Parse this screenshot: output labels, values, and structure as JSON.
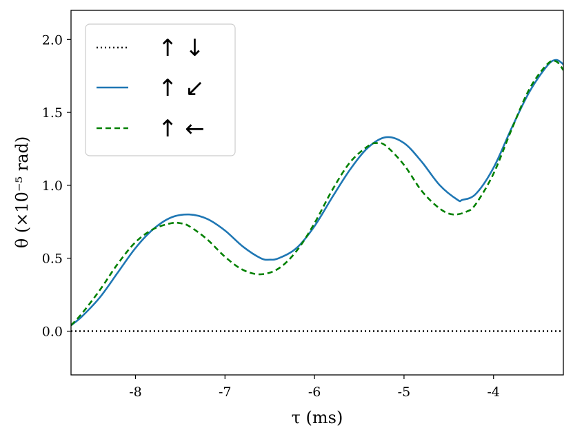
{
  "chart_data": {
    "type": "line",
    "xlabel": "τ (ms)",
    "ylabel": "θ (×10⁻⁵ rad)",
    "xlim": [
      -8.72,
      -3.22
    ],
    "ylim": [
      -0.3,
      2.2
    ],
    "xticks": [
      -8,
      -7,
      -6,
      -5,
      -4
    ],
    "xtick_labels": [
      "-8",
      "-7",
      "-6",
      "-5",
      "-4"
    ],
    "yticks": [
      0.0,
      0.5,
      1.0,
      1.5,
      2.0
    ],
    "ytick_labels": [
      "0.0",
      "0.5",
      "1.0",
      "1.5",
      "2.0"
    ],
    "grid": false,
    "legend_position": "top-left",
    "series": [
      {
        "name": "↑ ↓",
        "color": "#000000",
        "style": "dotted",
        "x": [
          -8.72,
          -3.22
        ],
        "y": [
          0.0,
          0.0
        ]
      },
      {
        "name": "↑ ↙",
        "color": "#1f77b4",
        "style": "solid",
        "x": [
          -8.72,
          -8.6,
          -8.4,
          -8.2,
          -8.0,
          -7.8,
          -7.6,
          -7.4,
          -7.2,
          -7.0,
          -6.8,
          -6.6,
          -6.5,
          -6.4,
          -6.2,
          -6.0,
          -5.8,
          -5.6,
          -5.4,
          -5.2,
          -5.0,
          -4.8,
          -4.6,
          -4.4,
          -4.35,
          -4.2,
          -4.0,
          -3.8,
          -3.6,
          -3.4,
          -3.3,
          -3.22
        ],
        "y": [
          0.04,
          0.1,
          0.23,
          0.4,
          0.57,
          0.7,
          0.78,
          0.8,
          0.77,
          0.69,
          0.58,
          0.5,
          0.49,
          0.5,
          0.57,
          0.72,
          0.92,
          1.11,
          1.26,
          1.33,
          1.29,
          1.16,
          1.0,
          0.9,
          0.9,
          0.94,
          1.12,
          1.39,
          1.64,
          1.82,
          1.86,
          1.83
        ]
      },
      {
        "name": "↑ ←",
        "color": "#008000",
        "style": "dashed",
        "x": [
          -8.72,
          -8.6,
          -8.4,
          -8.2,
          -8.0,
          -7.8,
          -7.6,
          -7.5,
          -7.4,
          -7.2,
          -7.0,
          -6.8,
          -6.6,
          -6.4,
          -6.2,
          -6.0,
          -5.8,
          -5.6,
          -5.4,
          -5.3,
          -5.2,
          -5.0,
          -4.8,
          -4.6,
          -4.45,
          -4.3,
          -4.2,
          -4.0,
          -3.8,
          -3.6,
          -3.4,
          -3.3,
          -3.22
        ],
        "y": [
          0.04,
          0.12,
          0.28,
          0.46,
          0.61,
          0.7,
          0.74,
          0.74,
          0.72,
          0.63,
          0.51,
          0.42,
          0.39,
          0.43,
          0.55,
          0.74,
          0.97,
          1.16,
          1.27,
          1.29,
          1.27,
          1.14,
          0.96,
          0.84,
          0.8,
          0.82,
          0.87,
          1.08,
          1.38,
          1.66,
          1.83,
          1.85,
          1.79
        ]
      }
    ]
  }
}
